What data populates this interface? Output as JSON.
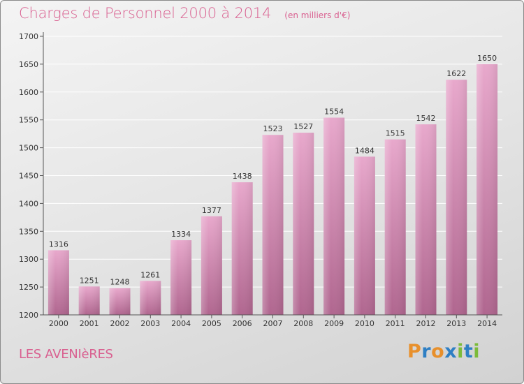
{
  "header": {
    "title": "Charges de Personnel 2000 à 2014",
    "subtitle": "(en milliers d'€)"
  },
  "footer": {
    "commune": "LES AVENIèRES",
    "logo": {
      "text": "Proxiti",
      "letter_colors": [
        "#e8902c",
        "#2e7fc4",
        "#e8902c",
        "#2e7fc4",
        "#7cbb3a",
        "#2e7fc4",
        "#7cbb3a"
      ]
    }
  },
  "colors": {
    "title": "#d96090",
    "bar_top": "#e8a8cc",
    "bar_bottom": "#b0668f",
    "axis": "#555555",
    "grid": "#ffffff"
  },
  "chart_data": {
    "type": "bar",
    "categories": [
      "2000",
      "2001",
      "2002",
      "2003",
      "2004",
      "2005",
      "2006",
      "2007",
      "2008",
      "2009",
      "2010",
      "2011",
      "2012",
      "2013",
      "2014"
    ],
    "values": [
      1316,
      1251,
      1248,
      1261,
      1334,
      1377,
      1438,
      1523,
      1527,
      1554,
      1484,
      1515,
      1542,
      1622,
      1650
    ],
    "title": "Charges de Personnel 2000 à 2014",
    "subtitle": "(en milliers d'€)",
    "xlabel": "",
    "ylabel": "",
    "ylim": [
      1200,
      1700
    ],
    "yticks": [
      1200,
      1250,
      1300,
      1350,
      1400,
      1450,
      1500,
      1550,
      1600,
      1650,
      1700
    ],
    "grid": true,
    "legend": "none",
    "data_labels": true
  }
}
